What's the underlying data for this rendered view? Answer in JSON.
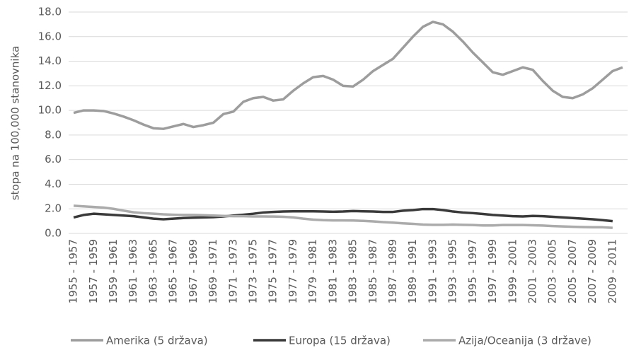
{
  "chart_data": {
    "type": "line",
    "y_label": "stopa na 100,000 stanovnika",
    "categories": [
      "1955 - 1957",
      null,
      "1957 - 1959",
      null,
      "1959 - 1961",
      null,
      "1961 - 1963",
      null,
      "1963 - 1965",
      null,
      "1965 - 1967",
      null,
      "1967 - 1969",
      null,
      "1969 - 1971",
      null,
      "1971 - 1973",
      null,
      "1973 - 1975",
      null,
      "1975 - 1977",
      null,
      "1977 - 1979",
      null,
      "1979 - 1981",
      null,
      "1981 - 1983",
      null,
      "1983 - 1985",
      null,
      "1985 - 1987",
      null,
      "1987 - 1989",
      null,
      "1989 - 1991",
      null,
      "1991 - 1993",
      null,
      "1993 - 1995",
      null,
      "1995 - 1997",
      null,
      "1997 - 1999",
      null,
      "1999 - 2001",
      null,
      "2001 - 2003",
      null,
      "2003 - 2005",
      null,
      "2005 - 2007",
      null,
      "2007 - 2009",
      null,
      "2009 - 2011",
      null
    ],
    "series": [
      {
        "name": "Amerika (5 država)",
        "color": "#9d9d9d",
        "values": [
          9.8,
          10.0,
          10.0,
          9.95,
          9.75,
          9.5,
          9.2,
          8.85,
          8.55,
          8.5,
          8.7,
          8.9,
          8.65,
          8.8,
          9.0,
          9.7,
          9.9,
          10.7,
          11.0,
          11.1,
          10.8,
          10.9,
          11.6,
          12.2,
          12.7,
          12.8,
          12.5,
          12.0,
          11.95,
          12.5,
          13.2,
          13.7,
          14.2,
          15.1,
          16.0,
          16.8,
          17.2,
          17.0,
          16.4,
          15.6,
          14.7,
          13.9,
          13.1,
          12.9,
          13.2,
          13.5,
          13.3,
          12.4,
          11.6,
          11.1,
          11.0,
          11.3,
          11.8,
          12.5,
          13.2,
          13.5
        ]
      },
      {
        "name": "Europa (15 država)",
        "color": "#3a3a3a",
        "values": [
          1.3,
          1.5,
          1.6,
          1.55,
          1.5,
          1.45,
          1.4,
          1.3,
          1.2,
          1.15,
          1.2,
          1.25,
          1.28,
          1.3,
          1.32,
          1.38,
          1.45,
          1.52,
          1.6,
          1.7,
          1.75,
          1.78,
          1.8,
          1.8,
          1.8,
          1.78,
          1.76,
          1.78,
          1.82,
          1.8,
          1.78,
          1.75,
          1.75,
          1.85,
          1.9,
          1.98,
          1.98,
          1.9,
          1.78,
          1.7,
          1.65,
          1.58,
          1.5,
          1.45,
          1.4,
          1.38,
          1.42,
          1.4,
          1.35,
          1.3,
          1.25,
          1.2,
          1.15,
          1.08,
          1.0,
          null
        ]
      },
      {
        "name": "Azija/Oceanija (3 države)",
        "color": "#ababab",
        "values": [
          2.25,
          2.2,
          2.15,
          2.1,
          2.0,
          1.85,
          1.72,
          1.65,
          1.6,
          1.55,
          1.52,
          1.5,
          1.5,
          1.48,
          1.45,
          1.42,
          1.4,
          1.4,
          1.38,
          1.38,
          1.37,
          1.35,
          1.3,
          1.2,
          1.12,
          1.08,
          1.06,
          1.06,
          1.05,
          1.02,
          0.98,
          0.92,
          0.88,
          0.82,
          0.78,
          0.72,
          0.7,
          0.7,
          0.72,
          0.7,
          0.68,
          0.65,
          0.65,
          0.68,
          0.68,
          0.68,
          0.66,
          0.64,
          0.6,
          0.57,
          0.54,
          0.52,
          0.5,
          0.5,
          0.45,
          null
        ]
      }
    ],
    "ylim": [
      0,
      18
    ],
    "yticks": [
      {
        "value": 0,
        "label": "0.0"
      },
      {
        "value": 2,
        "label": "2.0"
      },
      {
        "value": 4,
        "label": "4.0"
      },
      {
        "value": 6,
        "label": "6.0"
      },
      {
        "value": 8,
        "label": "8.0"
      },
      {
        "value": 10,
        "label": "10.0"
      },
      {
        "value": 12,
        "label": "12.0"
      },
      {
        "value": 14,
        "label": "14.0"
      },
      {
        "value": 16,
        "label": "16.0"
      },
      {
        "value": 18,
        "label": "18.0"
      }
    ],
    "grid": true
  }
}
